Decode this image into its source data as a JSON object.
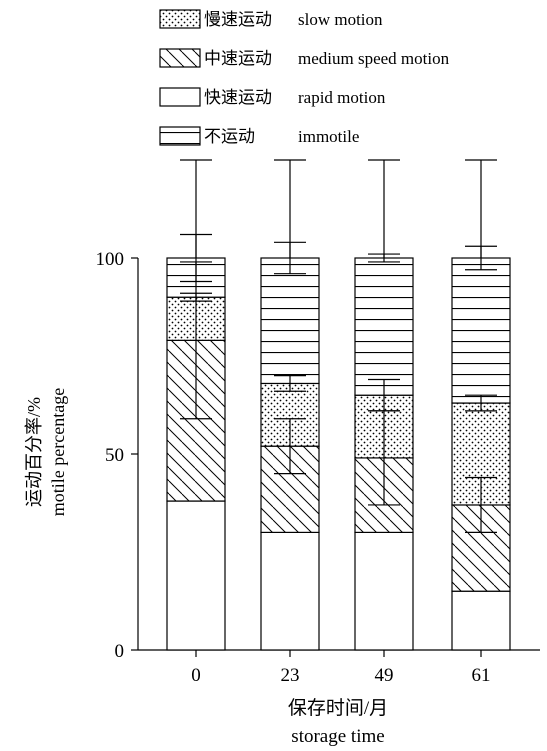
{
  "chart_data": {
    "type": "bar",
    "stacked": true,
    "categories": [
      "0",
      "23",
      "49",
      "61"
    ],
    "xlabel_zh": "保存时间/月",
    "xlabel_en": "storage time",
    "ylabel_zh": "运动百分率/%",
    "ylabel_en": "motile percentage",
    "ylim": [
      0,
      100
    ],
    "yticks": [
      "0",
      "50",
      "100"
    ],
    "legend_position": "top-left",
    "series": [
      {
        "key": "rapid",
        "name_zh": "快速运动",
        "name_en": "rapid motion",
        "pattern": "blank",
        "values": [
          38,
          30,
          30,
          15
        ],
        "err": [
          0,
          0,
          0,
          0
        ]
      },
      {
        "key": "medium",
        "name_zh": "中速运动",
        "name_en": "medium speed motion",
        "pattern": "diagonal",
        "values": [
          41,
          22,
          19,
          22
        ],
        "err": [
          20,
          7,
          12,
          7
        ]
      },
      {
        "key": "slow",
        "name_zh": "慢速运动",
        "name_en": "slow motion",
        "pattern": "dots",
        "values": [
          11,
          16,
          16,
          26
        ],
        "err": [
          1,
          2,
          4,
          2
        ]
      },
      {
        "key": "immotile",
        "name_zh": "不运动",
        "name_en": "immotile",
        "pattern": "horizontal",
        "values": [
          10,
          32,
          35,
          37
        ],
        "err": [
          6,
          4,
          1,
          3
        ]
      }
    ]
  }
}
